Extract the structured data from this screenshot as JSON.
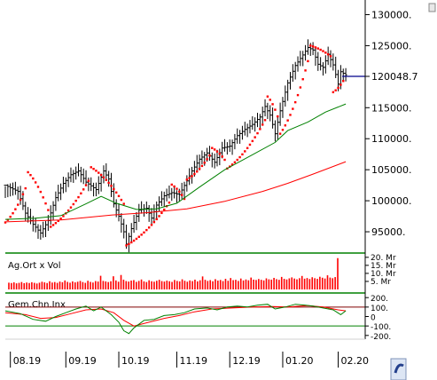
{
  "chart_data": {
    "type": "line",
    "main_panel": {
      "series": "price",
      "y_ticks": [
        "130000.",
        "125000.",
        "120048.7",
        "115000.",
        "110000.",
        "105000.",
        "100000.",
        "95000."
      ],
      "y_tick_values": [
        130000,
        125000,
        120048.7,
        115000,
        110000,
        105000,
        100000,
        95000
      ],
      "ylim": [
        92000,
        131500
      ],
      "last_value": 120048.7,
      "colors": {
        "price": "#000000",
        "parabolic_sar": "#ff0000",
        "ma_short": "#008000",
        "ma_long": "#ff0000",
        "last_value_line": "#00008b"
      }
    },
    "x_ticks": [
      "08.19",
      "09.19",
      "10.19",
      "11.19",
      "12.19",
      "01.20",
      "02.20"
    ],
    "x_tick_values": [
      0,
      22,
      43,
      66,
      87,
      108,
      130
    ],
    "x_range": [
      -2,
      140
    ],
    "price_path": [
      [
        -2,
        102500
      ],
      [
        3,
        101500
      ],
      [
        6,
        98000
      ],
      [
        9,
        96200
      ],
      [
        12,
        94800
      ],
      [
        15,
        96800
      ],
      [
        18,
        100500
      ],
      [
        21,
        102800
      ],
      [
        24,
        104200
      ],
      [
        27,
        104800
      ],
      [
        30,
        103000
      ],
      [
        34,
        101800
      ],
      [
        37,
        104800
      ],
      [
        39,
        103500
      ],
      [
        41,
        99500
      ],
      [
        43,
        97500
      ],
      [
        45,
        95000
      ],
      [
        46,
        93000
      ],
      [
        48,
        95500
      ],
      [
        51,
        98500
      ],
      [
        54,
        98800
      ],
      [
        56,
        97200
      ],
      [
        58,
        99300
      ],
      [
        61,
        100800
      ],
      [
        64,
        101300
      ],
      [
        67,
        101000
      ],
      [
        70,
        103200
      ],
      [
        72,
        104800
      ],
      [
        75,
        106700
      ],
      [
        78,
        107700
      ],
      [
        81,
        106200
      ],
      [
        84,
        108500
      ],
      [
        87,
        108800
      ],
      [
        90,
        110500
      ],
      [
        93,
        111500
      ],
      [
        96,
        112300
      ],
      [
        99,
        113500
      ],
      [
        101,
        115200
      ],
      [
        103,
        113800
      ],
      [
        105,
        110800
      ],
      [
        107,
        114500
      ],
      [
        110,
        119000
      ],
      [
        113,
        121800
      ],
      [
        116,
        123500
      ],
      [
        118,
        124700
      ],
      [
        120,
        124300
      ],
      [
        122,
        122000
      ],
      [
        124,
        121500
      ],
      [
        126,
        123600
      ],
      [
        128,
        121900
      ],
      [
        130,
        118800
      ],
      [
        131,
        120800
      ],
      [
        133,
        120300
      ]
    ],
    "sar_segments": [
      {
        "x0": -2,
        "y0": 96500,
        "x1": 6,
        "y1": 102000
      },
      {
        "x0": 7,
        "y0": 104600,
        "x1": 15,
        "y1": 98500
      },
      {
        "x0": 16,
        "y0": 95800,
        "x1": 31,
        "y1": 103200
      },
      {
        "x0": 32,
        "y0": 105400,
        "x1": 45,
        "y1": 99500
      },
      {
        "x0": 46,
        "y0": 92800,
        "x1": 63,
        "y1": 99700
      },
      {
        "x0": 64,
        "y0": 102600,
        "x1": 69,
        "y1": 100300
      },
      {
        "x0": 70,
        "y0": 103400,
        "x1": 79,
        "y1": 107300
      },
      {
        "x0": 80,
        "y0": 108500,
        "x1": 85,
        "y1": 106600
      },
      {
        "x0": 86,
        "y0": 105200,
        "x1": 101,
        "y1": 113000
      },
      {
        "x0": 102,
        "y0": 116800,
        "x1": 106,
        "y1": 113600
      },
      {
        "x0": 107,
        "y0": 110800,
        "x1": 118,
        "y1": 122500
      },
      {
        "x0": 119,
        "y0": 125000,
        "x1": 127,
        "y1": 123300
      },
      {
        "x0": 128,
        "y0": 117500,
        "x1": 132,
        "y1": 119300
      }
    ],
    "ma_short": [
      [
        -2,
        97000
      ],
      [
        10,
        97200
      ],
      [
        20,
        97600
      ],
      [
        30,
        99500
      ],
      [
        36,
        100700
      ],
      [
        42,
        99600
      ],
      [
        50,
        98600
      ],
      [
        58,
        98700
      ],
      [
        66,
        99600
      ],
      [
        75,
        102200
      ],
      [
        85,
        105000
      ],
      [
        95,
        107200
      ],
      [
        105,
        109400
      ],
      [
        110,
        111300
      ],
      [
        118,
        112700
      ],
      [
        125,
        114300
      ],
      [
        133,
        115600
      ]
    ],
    "ma_long": [
      [
        -2,
        96600
      ],
      [
        20,
        96900
      ],
      [
        40,
        97700
      ],
      [
        55,
        98100
      ],
      [
        70,
        98700
      ],
      [
        85,
        99900
      ],
      [
        100,
        101500
      ],
      [
        110,
        102800
      ],
      [
        120,
        104300
      ],
      [
        133,
        106300
      ]
    ],
    "volume_panel": {
      "title": "Ag.Ort x Vol",
      "y_ticks": [
        "20. Mr",
        "15. Mr",
        "10. Mr",
        "5. Mr"
      ],
      "y_tick_values": [
        20,
        15,
        10,
        5
      ],
      "ylim": [
        0,
        21
      ],
      "bar_color": "#ff0000",
      "values": [
        4.2,
        4.0,
        4.4,
        3.8,
        4.1,
        4.6,
        3.9,
        4.3,
        4.0,
        4.5,
        4.1,
        3.7,
        4.2,
        4.8,
        4.4,
        4.0,
        5.1,
        4.3,
        4.6,
        4.1,
        4.9,
        4.5,
        5.6,
        4.7,
        4.2,
        5.0,
        4.4,
        4.8,
        5.3,
        4.6,
        4.1,
        5.4,
        4.7,
        4.3,
        5.2,
        4.9,
        8.5,
        5.3,
        5.0,
        4.6,
        5.1,
        8.2,
        5.6,
        4.8,
        9.0,
        6.1,
        5.2,
        4.9,
        5.5,
        5.8,
        4.7,
        5.3,
        6.2,
        5.0,
        4.6,
        5.7,
        5.1,
        4.8,
        5.4,
        6.0,
        5.2,
        4.9,
        5.5,
        5.1,
        4.7,
        5.9,
        5.3,
        5.0,
        6.3,
        5.4,
        4.8,
        5.6,
        5.2,
        6.1,
        5.0,
        5.7,
        8.1,
        6.0,
        5.3,
        5.8,
        5.1,
        6.4,
        5.5,
        5.9,
        5.2,
        6.6,
        5.4,
        7.1,
        5.8,
        6.0,
        5.3,
        6.8,
        5.6,
        6.2,
        5.7,
        7.4,
        6.1,
        5.9,
        6.5,
        6.0,
        5.6,
        6.9,
        6.3,
        6.1,
        7.2,
        6.4,
        6.0,
        7.8,
        6.6,
        6.2,
        6.9,
        7.5,
        6.8,
        6.3,
        7.0,
        8.4,
        6.7,
        7.1,
        6.5,
        7.6,
        7.0,
        6.6,
        7.9,
        7.3,
        6.8,
        8.8,
        7.4,
        7.0,
        7.7,
        19.5
      ]
    },
    "momentum_panel": {
      "title": "Gem.Chn.Inx",
      "y_ticks": [
        "200.",
        "100.",
        "0",
        "-100.",
        "-200."
      ],
      "y_tick_values": [
        200,
        100,
        0,
        -100,
        -200
      ],
      "ylim": [
        -230,
        230
      ],
      "reference_lines": [
        100,
        -100
      ],
      "colors": {
        "cci": "#008000",
        "signal": "#ff0000",
        "upper_ref": "#800000",
        "lower_ref": "#008000"
      },
      "cci": [
        [
          -2,
          60
        ],
        [
          4,
          30
        ],
        [
          9,
          -30
        ],
        [
          14,
          -50
        ],
        [
          18,
          0
        ],
        [
          22,
          40
        ],
        [
          26,
          80
        ],
        [
          30,
          110
        ],
        [
          33,
          60
        ],
        [
          36,
          100
        ],
        [
          40,
          20
        ],
        [
          43,
          -60
        ],
        [
          45,
          -150
        ],
        [
          47,
          -180
        ],
        [
          49,
          -120
        ],
        [
          53,
          -40
        ],
        [
          57,
          -30
        ],
        [
          61,
          10
        ],
        [
          65,
          20
        ],
        [
          69,
          40
        ],
        [
          73,
          80
        ],
        [
          78,
          90
        ],
        [
          82,
          70
        ],
        [
          86,
          100
        ],
        [
          90,
          110
        ],
        [
          94,
          100
        ],
        [
          98,
          120
        ],
        [
          102,
          130
        ],
        [
          105,
          80
        ],
        [
          109,
          100
        ],
        [
          113,
          130
        ],
        [
          117,
          120
        ],
        [
          120,
          110
        ],
        [
          124,
          90
        ],
        [
          128,
          70
        ],
        [
          131,
          20
        ],
        [
          133,
          60
        ]
      ],
      "signal": [
        [
          -2,
          40
        ],
        [
          6,
          20
        ],
        [
          12,
          -20
        ],
        [
          18,
          -10
        ],
        [
          24,
          30
        ],
        [
          30,
          70
        ],
        [
          36,
          80
        ],
        [
          41,
          40
        ],
        [
          45,
          -40
        ],
        [
          49,
          -100
        ],
        [
          55,
          -60
        ],
        [
          61,
          -20
        ],
        [
          67,
          10
        ],
        [
          73,
          50
        ],
        [
          80,
          80
        ],
        [
          88,
          90
        ],
        [
          96,
          100
        ],
        [
          104,
          105
        ],
        [
          110,
          100
        ],
        [
          118,
          115
        ],
        [
          124,
          100
        ],
        [
          130,
          70
        ],
        [
          133,
          60
        ]
      ]
    }
  }
}
